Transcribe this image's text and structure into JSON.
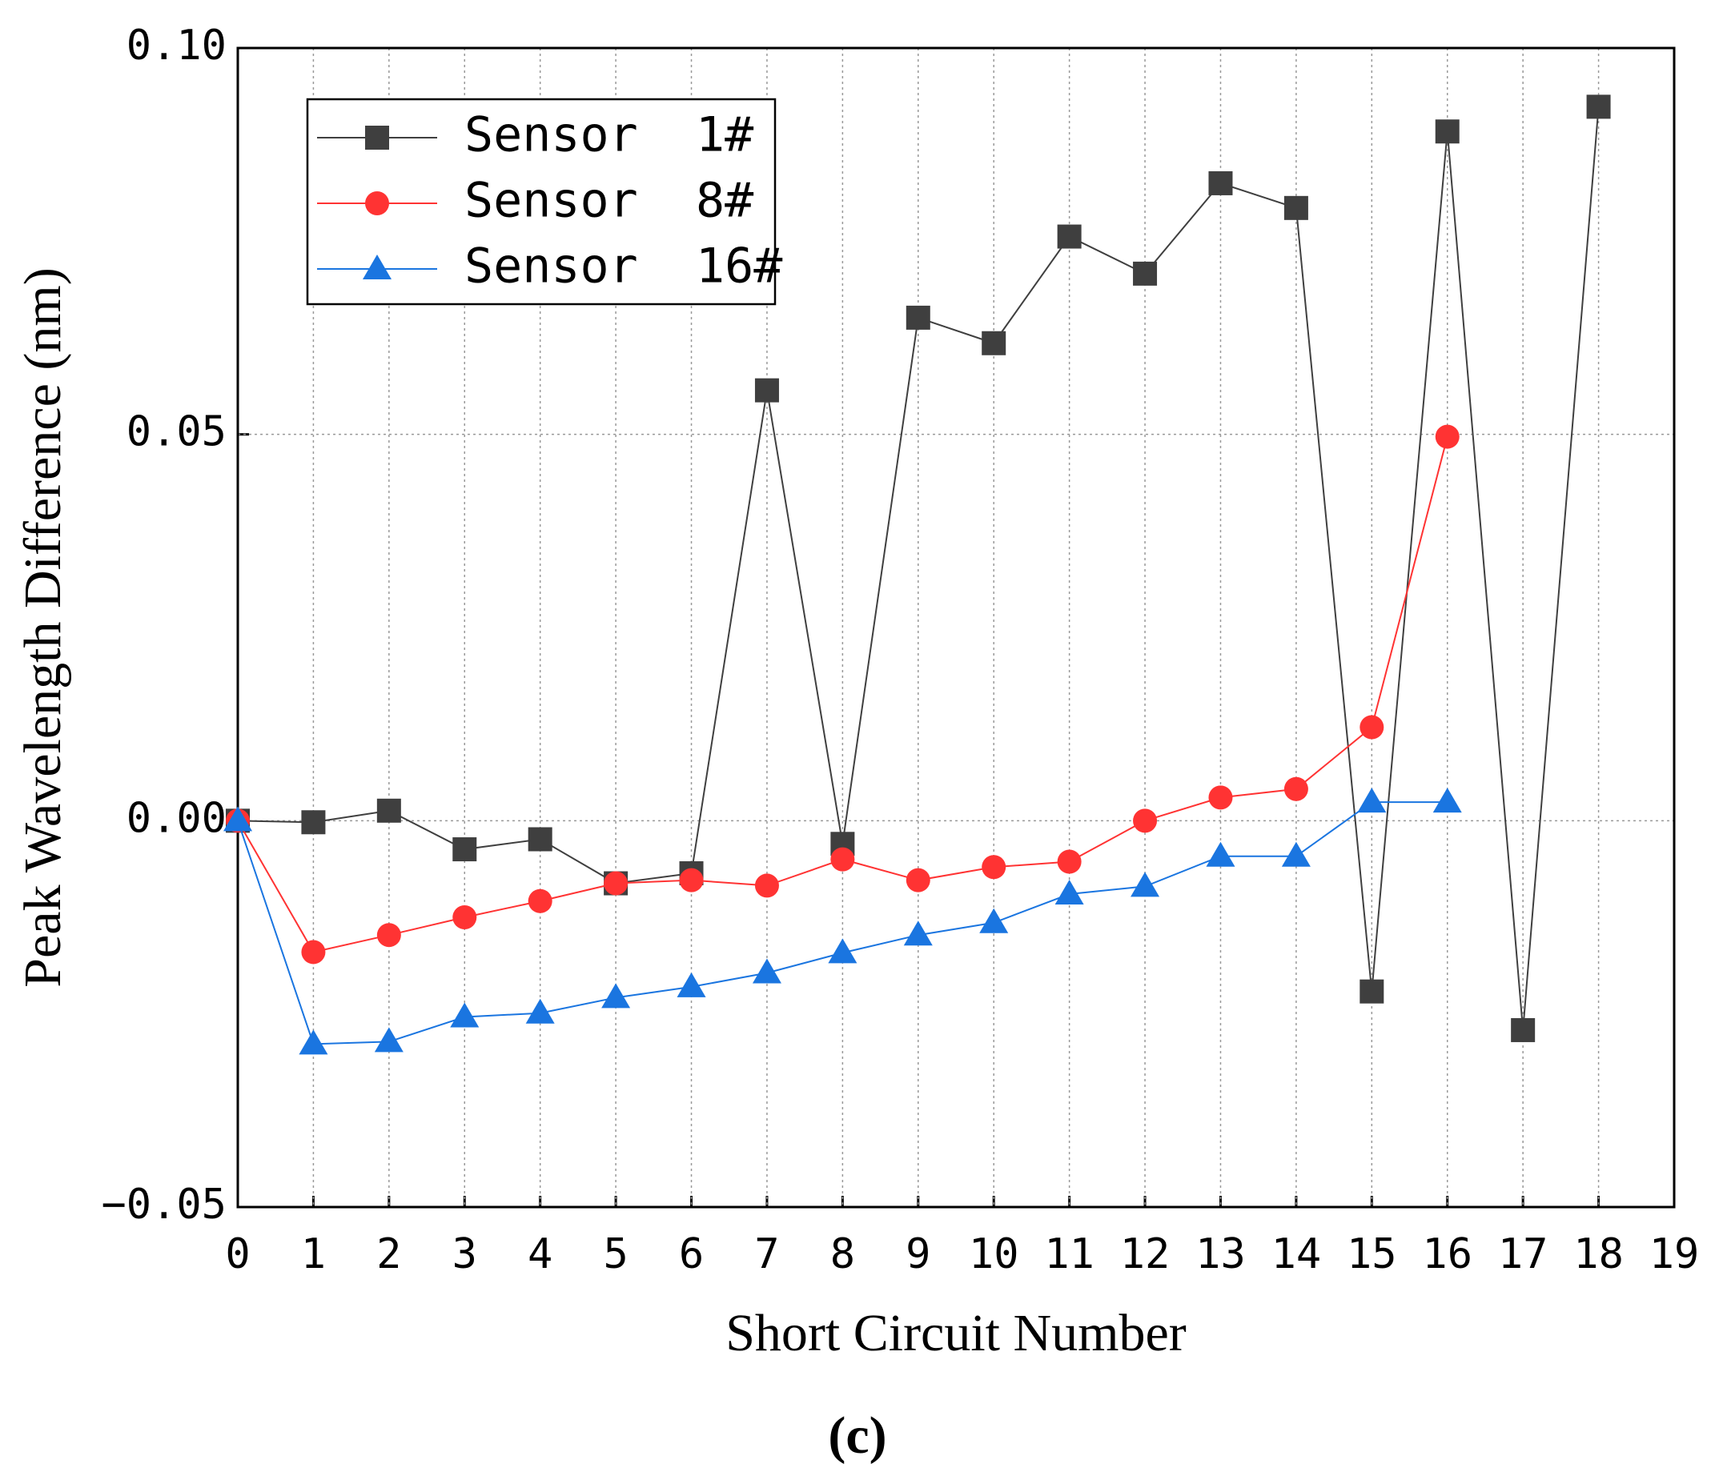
{
  "chart_data": {
    "type": "line",
    "xlabel": "Short Circuit Number",
    "ylabel": "Peak Wavelength Difference (nm)",
    "caption": "(c)",
    "x": [
      0,
      1,
      2,
      3,
      4,
      5,
      6,
      7,
      8,
      9,
      10,
      11,
      12,
      13,
      14,
      15,
      16,
      17,
      18
    ],
    "xlim": [
      0,
      19
    ],
    "xticks": [
      0,
      1,
      2,
      3,
      4,
      5,
      6,
      7,
      8,
      9,
      10,
      11,
      12,
      13,
      14,
      15,
      16,
      17,
      18,
      19
    ],
    "ylim": [
      -0.05,
      0.1
    ],
    "yticks": [
      {
        "value": -0.05,
        "label": "−0.05"
      },
      {
        "value": 0,
        "label": "0.00"
      },
      {
        "value": 0.05,
        "label": "0.05"
      },
      {
        "value": 0.1,
        "label": "0.10"
      }
    ],
    "grid": true,
    "legend": "upper left",
    "series": [
      {
        "name": "Sensor  1#",
        "color": "#3f3f3f",
        "marker": "square",
        "values": [
          0,
          -0.0002,
          0.0013,
          -0.0037,
          -0.0024,
          -0.0081,
          -0.0068,
          0.0557,
          -0.003,
          0.0651,
          0.0618,
          0.0756,
          0.0708,
          0.0825,
          0.0793,
          -0.0221,
          0.0892,
          -0.0271,
          0.0924
        ]
      },
      {
        "name": "Sensor  8#",
        "color": "#ff3333",
        "marker": "circle",
        "values": [
          0,
          -0.017,
          -0.0148,
          -0.0125,
          -0.0104,
          -0.0081,
          -0.0077,
          -0.0084,
          -0.005,
          -0.0077,
          -0.006,
          -0.0053,
          0,
          0.003,
          0.0041,
          0.0121,
          0.0497,
          null,
          null
        ]
      },
      {
        "name": "Sensor  16#",
        "color": "#1a75e0",
        "marker": "triangle",
        "values": [
          0,
          -0.0289,
          -0.0286,
          -0.0254,
          -0.0249,
          -0.0229,
          -0.0215,
          -0.0197,
          -0.0171,
          -0.0148,
          -0.0132,
          -0.0095,
          -0.0085,
          -0.0046,
          -0.0046,
          0.0024,
          0.0024,
          null,
          null
        ]
      }
    ]
  }
}
